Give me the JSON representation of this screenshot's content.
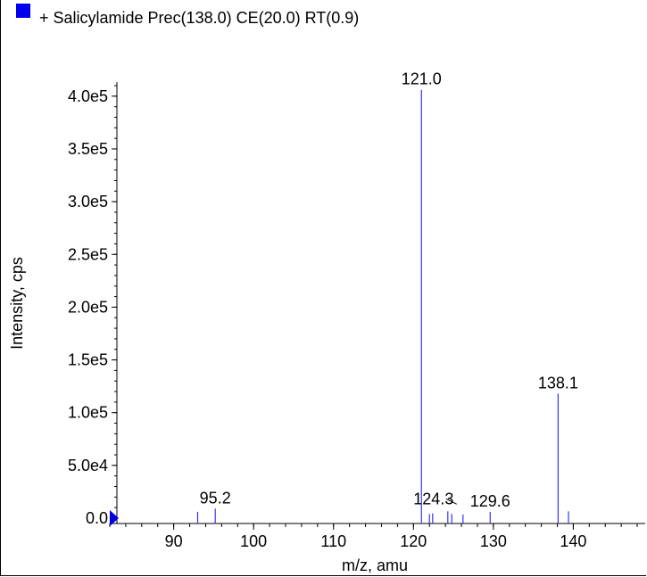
{
  "colors": {
    "series": "#3333ff",
    "legend_marker": "#0000ee",
    "axis": "#000000",
    "cursor_marker": "#0000dd"
  },
  "chart_data": {
    "type": "bar",
    "title": "+ Salicylamide Prec(138.0) CE(20.0) RT(0.9)",
    "xlabel": "m/z, amu",
    "ylabel": "Intensity, cps",
    "xlim": [
      82,
      149
    ],
    "ylim": [
      0,
      410000
    ],
    "grid": false,
    "legend": "top-left",
    "x_ticks": [
      90,
      100,
      110,
      120,
      130,
      140
    ],
    "y_ticks": [
      {
        "value": 0,
        "label": "0.0"
      },
      {
        "value": 50000,
        "label": "5.0e4"
      },
      {
        "value": 100000,
        "label": "1.0e5"
      },
      {
        "value": 150000,
        "label": "1.5e5"
      },
      {
        "value": 200000,
        "label": "2.0e5"
      },
      {
        "value": 250000,
        "label": "2.5e5"
      },
      {
        "value": 300000,
        "label": "3.0e5"
      },
      {
        "value": 350000,
        "label": "3.5e5"
      },
      {
        "value": 400000,
        "label": "4.0e5"
      }
    ],
    "series": [
      {
        "points": [
          {
            "mz": 93.0,
            "intensity": 6000
          },
          {
            "mz": 95.2,
            "intensity": 9000
          },
          {
            "mz": 121.0,
            "intensity": 406000
          },
          {
            "mz": 122.0,
            "intensity": 4000
          },
          {
            "mz": 122.4,
            "intensity": 4500
          },
          {
            "mz": 124.3,
            "intensity": 6500
          },
          {
            "mz": 124.8,
            "intensity": 4000
          },
          {
            "mz": 126.2,
            "intensity": 3500
          },
          {
            "mz": 129.6,
            "intensity": 6000
          },
          {
            "mz": 138.1,
            "intensity": 118000
          },
          {
            "mz": 139.4,
            "intensity": 6500
          }
        ]
      }
    ],
    "annotations": [
      {
        "text": "121.0",
        "mz": 121.0,
        "intensity": 406000
      },
      {
        "text": "138.1",
        "mz": 138.1,
        "intensity": 118000
      },
      {
        "text": "95.2",
        "mz": 95.2,
        "intensity": 9000
      },
      {
        "text": "124.3",
        "mz": 124.3,
        "intensity": 6500,
        "leader": true
      },
      {
        "text": "129.6",
        "mz": 129.6,
        "intensity": 6000
      }
    ]
  }
}
